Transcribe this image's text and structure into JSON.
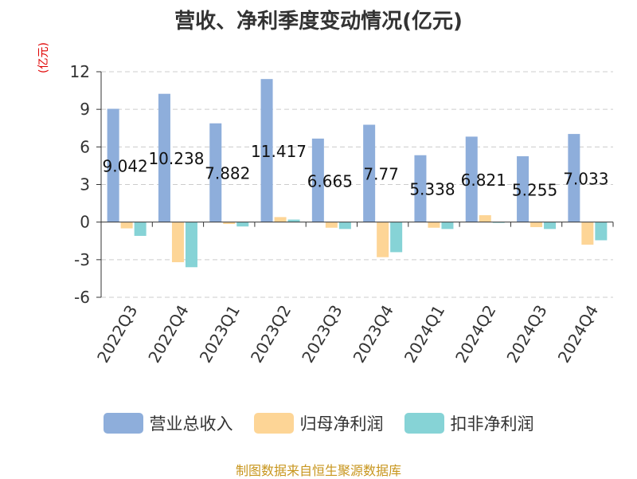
{
  "chart_data": {
    "type": "bar",
    "title": "营收、净利季度变动情况(亿元)",
    "ylabel": "(亿元)",
    "ylim": [
      -6,
      12
    ],
    "yticks": [
      12,
      9,
      6,
      3,
      0,
      -3,
      -6
    ],
    "grid": true,
    "legend_position": "bottom",
    "categories": [
      "2022Q3",
      "2022Q4",
      "2023Q1",
      "2023Q2",
      "2023Q3",
      "2023Q4",
      "2024Q1",
      "2024Q2",
      "2024Q3",
      "2024Q4"
    ],
    "series": [
      {
        "name": "营业总收入",
        "color": "#8eaedb",
        "values": [
          9.042,
          10.238,
          7.882,
          11.417,
          6.665,
          7.77,
          5.338,
          6.821,
          5.255,
          7.033
        ],
        "labels": [
          "9.042",
          "10.238",
          "7.882",
          "11.417",
          "6.665",
          "7.77",
          "5.338",
          "6.821",
          "5.255",
          "7.033"
        ]
      },
      {
        "name": "归母净利润",
        "color": "#fdd596",
        "values": [
          -0.5,
          -3.2,
          -0.15,
          0.4,
          -0.45,
          -2.8,
          -0.45,
          0.55,
          -0.4,
          -1.8
        ]
      },
      {
        "name": "扣非净利润",
        "color": "#86d3d6",
        "values": [
          -1.1,
          -3.6,
          -0.35,
          0.2,
          -0.55,
          -2.4,
          -0.55,
          -0.05,
          -0.55,
          -1.45
        ]
      }
    ]
  },
  "source": "制图数据来自恒生聚源数据库"
}
